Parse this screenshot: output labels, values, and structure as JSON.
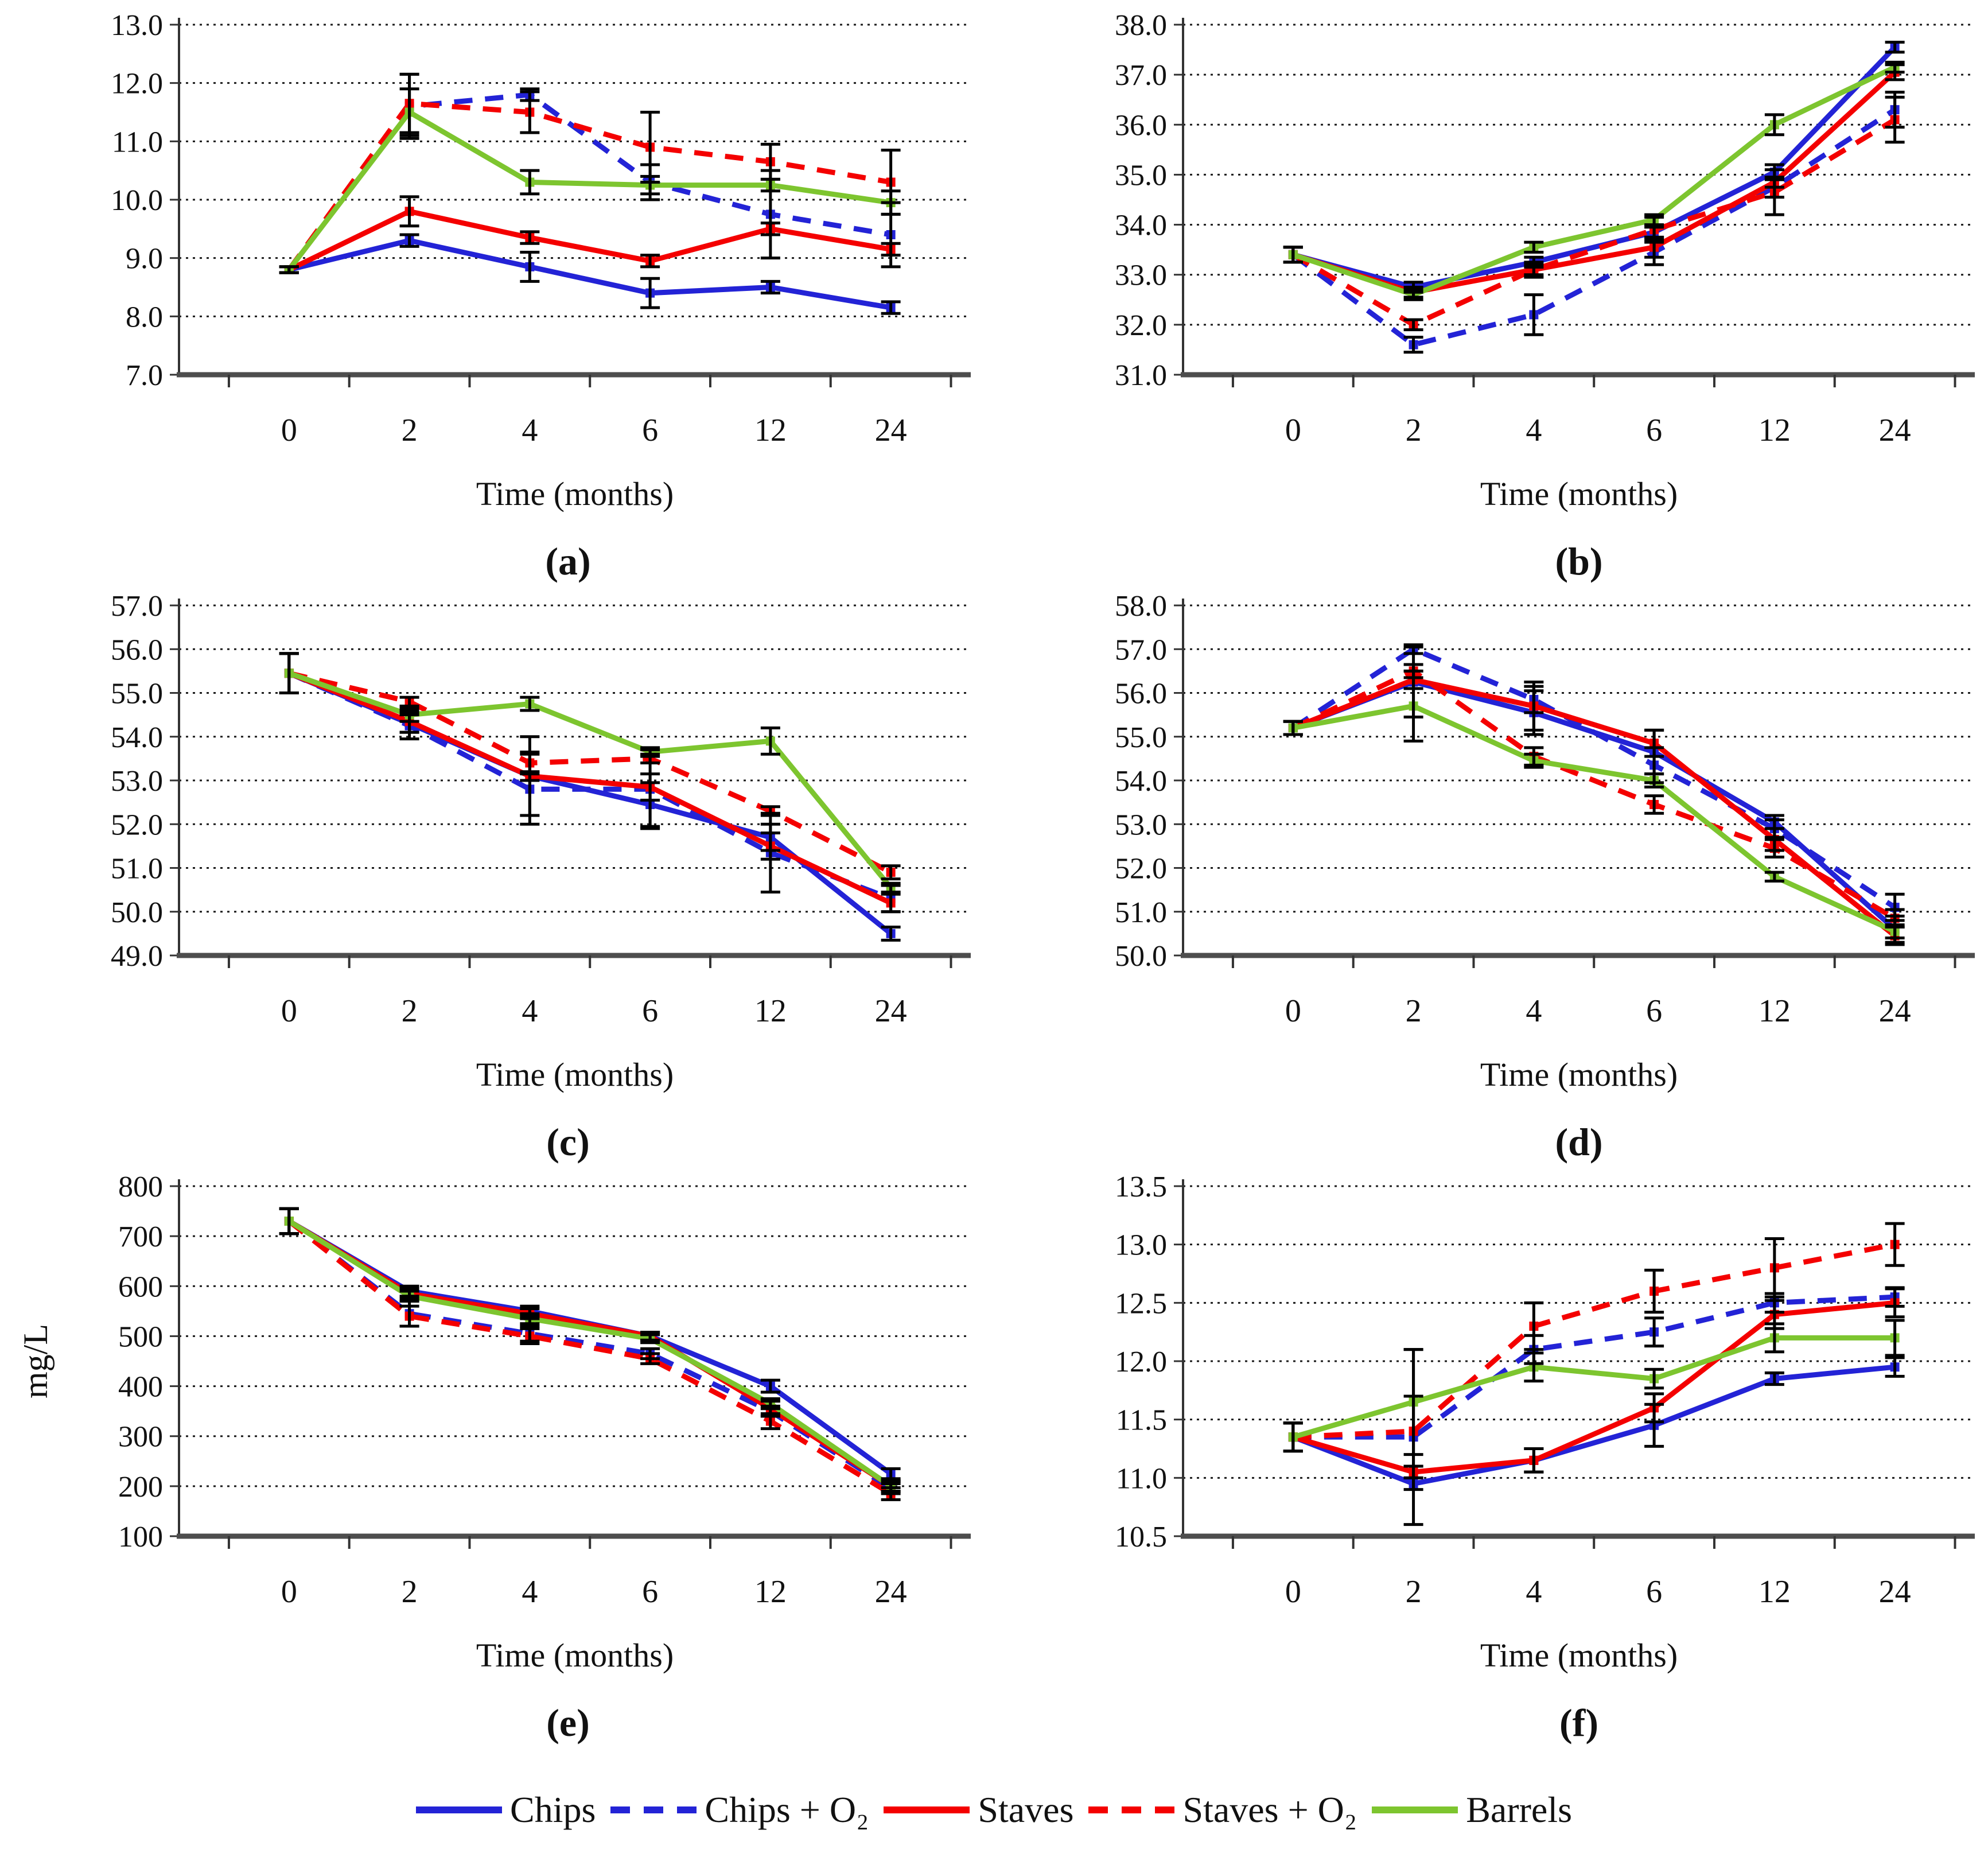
{
  "figure": {
    "xlabel": "Time (months)",
    "categories": [
      "0",
      "2",
      "4",
      "6",
      "12",
      "24"
    ],
    "colors": {
      "blue": "#2323d6",
      "red": "#f40000",
      "green": "#7dc52f",
      "error": "#000000",
      "grid": "#1a1a1a"
    }
  },
  "legend": {
    "items": [
      {
        "label": "Chips",
        "color": "#2323d6",
        "dashed": false
      },
      {
        "label": "Chips + O₂",
        "color": "#2323d6",
        "dashed": true
      },
      {
        "label": "Staves",
        "color": "#f40000",
        "dashed": false
      },
      {
        "label": "Staves + O₂",
        "color": "#f40000",
        "dashed": true
      },
      {
        "label": "Barrels",
        "color": "#7dc52f",
        "dashed": false
      }
    ]
  },
  "chart_data": [
    {
      "type": "line",
      "caption": "(a)",
      "xlabel": "Time (months)",
      "ylabel": "",
      "categories": [
        "0",
        "2",
        "4",
        "6",
        "12",
        "24"
      ],
      "ylim": [
        7.0,
        13.0
      ],
      "ystep": 1.0,
      "decimals": 1,
      "grid": true,
      "legend_position": "bottom-shared",
      "series": [
        {
          "name": "Chips",
          "color": "#2323d6",
          "dashed": false,
          "values": [
            8.8,
            9.3,
            8.85,
            8.4,
            8.5,
            8.15
          ],
          "err": [
            0.05,
            0.1,
            0.25,
            0.25,
            0.1,
            0.1
          ]
        },
        {
          "name": "Chips + O₂",
          "color": "#2323d6",
          "dashed": true,
          "values": [
            8.8,
            11.6,
            11.8,
            10.3,
            9.75,
            9.4
          ],
          "err": [
            0.05,
            0.55,
            0.1,
            0.3,
            0.75,
            0.55
          ]
        },
        {
          "name": "Staves",
          "color": "#f40000",
          "dashed": false,
          "values": [
            8.8,
            9.8,
            9.35,
            8.95,
            9.5,
            9.15
          ],
          "err": [
            0.05,
            0.25,
            0.1,
            0.1,
            0.1,
            0.1
          ]
        },
        {
          "name": "Staves + O₂",
          "color": "#f40000",
          "dashed": true,
          "values": [
            8.8,
            11.65,
            11.5,
            10.9,
            10.65,
            10.3
          ],
          "err": [
            0.05,
            0.5,
            0.35,
            0.6,
            0.3,
            0.55
          ]
        },
        {
          "name": "Barrels",
          "color": "#7dc52f",
          "dashed": false,
          "values": [
            8.8,
            11.5,
            10.3,
            10.25,
            10.25,
            9.95
          ],
          "err": [
            0.05,
            0.4,
            0.2,
            0.15,
            0.1,
            0.2
          ]
        }
      ]
    },
    {
      "type": "line",
      "caption": "(b)",
      "xlabel": "Time (months)",
      "ylabel": "",
      "categories": [
        "0",
        "2",
        "4",
        "6",
        "12",
        "24"
      ],
      "ylim": [
        31.0,
        38.0
      ],
      "ystep": 1.0,
      "decimals": 1,
      "grid": true,
      "series": [
        {
          "name": "Chips",
          "color": "#2323d6",
          "dashed": false,
          "values": [
            33.4,
            32.75,
            33.25,
            33.85,
            35.05,
            37.55
          ],
          "err": [
            0.15,
            0.1,
            0.1,
            0.1,
            0.15,
            0.1
          ]
        },
        {
          "name": "Chips + O₂",
          "color": "#2323d6",
          "dashed": true,
          "values": [
            33.4,
            31.6,
            32.2,
            33.45,
            34.75,
            36.3
          ],
          "err": [
            0.15,
            0.15,
            0.4,
            0.25,
            0.2,
            0.35
          ]
        },
        {
          "name": "Staves",
          "color": "#f40000",
          "dashed": false,
          "values": [
            33.4,
            32.65,
            33.1,
            33.55,
            34.85,
            37.05
          ],
          "err": [
            0.15,
            0.1,
            0.15,
            0.2,
            0.1,
            0.15
          ]
        },
        {
          "name": "Staves + O₂",
          "color": "#f40000",
          "dashed": true,
          "values": [
            33.4,
            32.0,
            33.1,
            33.9,
            34.65,
            36.1
          ],
          "err": [
            0.15,
            0.1,
            0.1,
            0.25,
            0.45,
            0.45
          ]
        },
        {
          "name": "Barrels",
          "color": "#7dc52f",
          "dashed": false,
          "values": [
            33.4,
            32.6,
            33.55,
            34.1,
            36.0,
            37.15
          ],
          "err": [
            0.15,
            0.1,
            0.1,
            0.1,
            0.2,
            0.1
          ]
        }
      ]
    },
    {
      "type": "line",
      "caption": "(c)",
      "xlabel": "Time (months)",
      "ylabel": "",
      "categories": [
        "0",
        "2",
        "4",
        "6",
        "12",
        "24"
      ],
      "ylim": [
        49.0,
        57.0
      ],
      "ystep": 1.0,
      "decimals": 1,
      "grid": true,
      "series": [
        {
          "name": "Chips",
          "color": "#2323d6",
          "dashed": false,
          "values": [
            55.45,
            54.3,
            53.1,
            52.45,
            51.7,
            49.5
          ],
          "err": [
            0.45,
            0.2,
            0.9,
            0.5,
            0.3,
            0.15
          ]
        },
        {
          "name": "Chips + O₂",
          "color": "#2323d6",
          "dashed": true,
          "values": [
            55.45,
            54.25,
            52.8,
            52.8,
            51.35,
            50.3
          ],
          "err": [
            0.45,
            0.3,
            0.8,
            0.9,
            0.9,
            0.3
          ]
        },
        {
          "name": "Staves",
          "color": "#f40000",
          "dashed": false,
          "values": [
            55.45,
            54.35,
            53.1,
            52.85,
            51.5,
            50.2
          ],
          "err": [
            0.45,
            0.25,
            0.1,
            0.3,
            0.3,
            0.2
          ]
        },
        {
          "name": "Staves + O₂",
          "color": "#f40000",
          "dashed": true,
          "values": [
            55.45,
            54.8,
            53.4,
            53.5,
            52.3,
            50.9
          ],
          "err": [
            0.45,
            0.1,
            0.25,
            0.1,
            0.1,
            0.15
          ]
        },
        {
          "name": "Barrels",
          "color": "#7dc52f",
          "dashed": false,
          "values": [
            55.45,
            54.5,
            54.75,
            53.65,
            53.9,
            50.55
          ],
          "err": [
            0.45,
            0.15,
            0.15,
            0.1,
            0.3,
            0.1
          ]
        }
      ]
    },
    {
      "type": "line",
      "caption": "(d)",
      "xlabel": "Time (months)",
      "ylabel": "",
      "categories": [
        "0",
        "2",
        "4",
        "6",
        "12",
        "24"
      ],
      "ylim": [
        50.0,
        58.0
      ],
      "ystep": 1.0,
      "decimals": 1,
      "grid": true,
      "series": [
        {
          "name": "Chips",
          "color": "#2323d6",
          "dashed": false,
          "values": [
            55.2,
            56.25,
            55.55,
            54.65,
            53.05,
            50.6
          ],
          "err": [
            0.15,
            0.8,
            0.5,
            0.5,
            0.15,
            0.3
          ]
        },
        {
          "name": "Chips + O₂",
          "color": "#2323d6",
          "dashed": true,
          "values": [
            55.2,
            57.0,
            55.85,
            54.35,
            52.9,
            51.1
          ],
          "err": [
            0.15,
            0.1,
            0.3,
            0.4,
            0.2,
            0.3
          ]
        },
        {
          "name": "Staves",
          "color": "#f40000",
          "dashed": false,
          "values": [
            55.2,
            56.3,
            55.7,
            54.85,
            52.65,
            50.45
          ],
          "err": [
            0.15,
            0.2,
            0.55,
            0.3,
            0.25,
            0.2
          ]
        },
        {
          "name": "Staves + O₂",
          "color": "#f40000",
          "dashed": true,
          "values": [
            55.2,
            56.5,
            54.55,
            53.45,
            52.45,
            50.85
          ],
          "err": [
            0.15,
            0.15,
            0.2,
            0.2,
            0.2,
            0.2
          ]
        },
        {
          "name": "Barrels",
          "color": "#7dc52f",
          "dashed": false,
          "values": [
            55.2,
            55.7,
            54.45,
            54.0,
            51.8,
            50.55
          ],
          "err": [
            0.15,
            0.8,
            0.15,
            0.15,
            0.1,
            0.15
          ]
        }
      ]
    },
    {
      "type": "line",
      "caption": "(e)",
      "xlabel": "Time (months)",
      "ylabel": "mg/L",
      "categories": [
        "0",
        "2",
        "4",
        "6",
        "12",
        "24"
      ],
      "ylim": [
        100,
        800
      ],
      "ystep": 100,
      "decimals": 0,
      "grid": true,
      "series": [
        {
          "name": "Chips",
          "color": "#2323d6",
          "dashed": false,
          "values": [
            730,
            590,
            550,
            500,
            400,
            225
          ],
          "err": [
            25,
            10,
            10,
            8,
            12,
            10
          ]
        },
        {
          "name": "Chips + O₂",
          "color": "#2323d6",
          "dashed": true,
          "values": [
            730,
            545,
            505,
            465,
            350,
            195
          ],
          "err": [
            25,
            25,
            15,
            10,
            10,
            10
          ]
        },
        {
          "name": "Staves",
          "color": "#f40000",
          "dashed": false,
          "values": [
            730,
            585,
            545,
            500,
            355,
            200
          ],
          "err": [
            25,
            10,
            10,
            8,
            15,
            10
          ]
        },
        {
          "name": "Staves + O₂",
          "color": "#f40000",
          "dashed": true,
          "values": [
            730,
            540,
            500,
            455,
            330,
            185
          ],
          "err": [
            25,
            20,
            15,
            10,
            15,
            12
          ]
        },
        {
          "name": "Barrels",
          "color": "#7dc52f",
          "dashed": false,
          "values": [
            730,
            580,
            535,
            495,
            365,
            200
          ],
          "err": [
            25,
            10,
            10,
            8,
            10,
            10
          ]
        }
      ]
    },
    {
      "type": "line",
      "caption": "(f)",
      "xlabel": "Time (months)",
      "ylabel": "",
      "categories": [
        "0",
        "2",
        "4",
        "6",
        "12",
        "24"
      ],
      "ylim": [
        10.5,
        13.5
      ],
      "ystep": 0.5,
      "decimals": 1,
      "grid": true,
      "series": [
        {
          "name": "Chips",
          "color": "#2323d6",
          "dashed": false,
          "values": [
            11.35,
            10.95,
            11.15,
            11.45,
            11.85,
            11.95
          ],
          "err": [
            0.12,
            0.05,
            0.1,
            0.18,
            0.05,
            0.08
          ]
        },
        {
          "name": "Chips + O₂",
          "color": "#2323d6",
          "dashed": true,
          "values": [
            11.35,
            11.35,
            12.1,
            12.25,
            12.5,
            12.55
          ],
          "err": [
            0.12,
            0.75,
            0.12,
            0.12,
            0.08,
            0.08
          ]
        },
        {
          "name": "Staves",
          "color": "#f40000",
          "dashed": false,
          "values": [
            11.35,
            11.05,
            11.15,
            11.6,
            12.4,
            12.5
          ],
          "err": [
            0.12,
            0.05,
            0.1,
            0.12,
            0.12,
            0.12
          ]
        },
        {
          "name": "Staves + O₂",
          "color": "#f40000",
          "dashed": true,
          "values": [
            11.35,
            11.4,
            12.3,
            12.6,
            12.8,
            13.0
          ],
          "err": [
            0.12,
            0.3,
            0.2,
            0.18,
            0.25,
            0.18
          ]
        },
        {
          "name": "Barrels",
          "color": "#7dc52f",
          "dashed": false,
          "values": [
            11.35,
            11.65,
            11.95,
            11.85,
            12.2,
            12.2
          ],
          "err": [
            0.12,
            0.45,
            0.12,
            0.08,
            0.12,
            0.15
          ]
        }
      ]
    }
  ]
}
